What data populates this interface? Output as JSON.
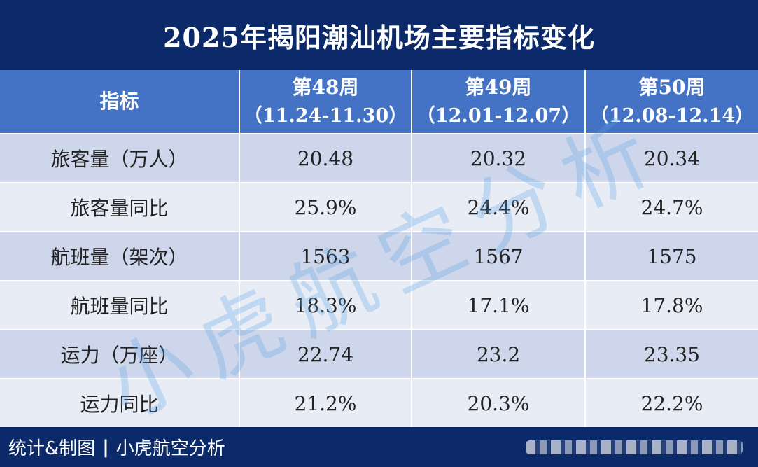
{
  "title": "2025年揭阳潮汕机场主要指标变化",
  "header": {
    "metric_label": "指标",
    "weeks": [
      {
        "name": "第48周",
        "period": "（11.24-11.30）"
      },
      {
        "name": "第49周",
        "period": "（12.01-12.07）"
      },
      {
        "name": "第50周",
        "period": "（12.08-12.14）"
      }
    ]
  },
  "rows": [
    {
      "label": "旅客量（万人）",
      "values": [
        "20.48",
        "20.32",
        "20.34"
      ]
    },
    {
      "label": "旅客量同比",
      "values": [
        "25.9%",
        "24.4%",
        "24.7%"
      ]
    },
    {
      "label": "航班量（架次）",
      "values": [
        "1563",
        "1567",
        "1575"
      ]
    },
    {
      "label": "航班量同比",
      "values": [
        "18.3%",
        "17.1%",
        "17.8%"
      ]
    },
    {
      "label": "运力（万座）",
      "values": [
        "22.74",
        "23.2",
        "23.35"
      ]
    },
    {
      "label": "运力同比",
      "values": [
        "21.2%",
        "20.3%",
        "22.2%"
      ]
    }
  ],
  "footer": {
    "credit": "统计&制图",
    "separator": "|",
    "author": "小虎航空分析"
  },
  "watermark": [
    "小",
    "虎",
    "航",
    "空",
    "分",
    "析"
  ],
  "colors": {
    "title_bg": "#0c2a69",
    "header_bg": "#4472c4",
    "row_odd": "#cdd6ea",
    "row_even": "#e8ecf5",
    "watermark": "#5aa0e6"
  }
}
